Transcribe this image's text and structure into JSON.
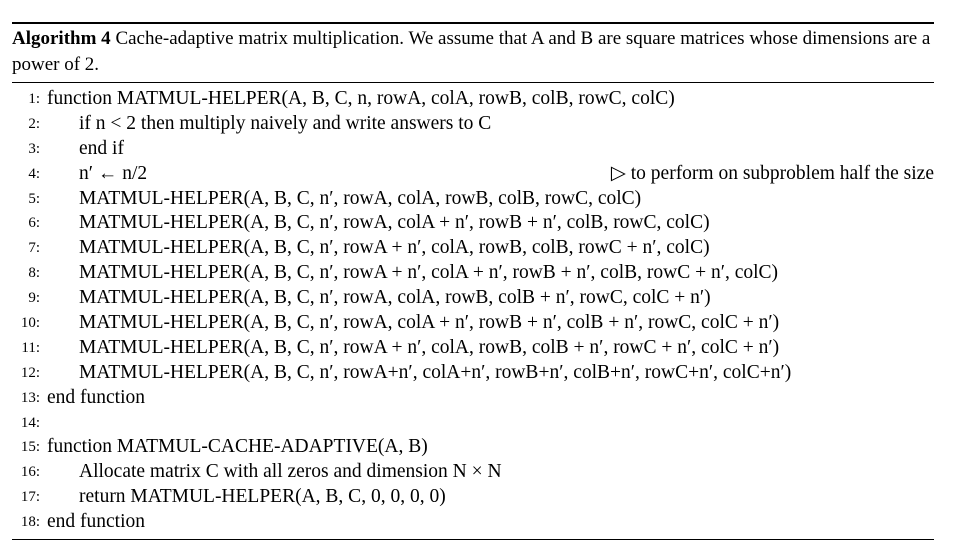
{
  "caption": {
    "label": "Algorithm 4",
    "text": "Cache-adaptive matrix multiplication. We assume that A and B are square matrices whose dimensions are a power of 2."
  },
  "lines": [
    {
      "num": "1:",
      "indent": 0,
      "text": "function MATMUL-HELPER(A, B, C, n, rowA, colA, rowB, colB, rowC, colC)"
    },
    {
      "num": "2:",
      "indent": 1,
      "text": "if n < 2 then multiply naively and write answers to C"
    },
    {
      "num": "3:",
      "indent": 1,
      "text": "end if"
    },
    {
      "num": "4:",
      "indent": 1,
      "text": "n′ ← n/2",
      "comment": "▷ to perform on subproblem half the size"
    },
    {
      "num": "5:",
      "indent": 1,
      "text": "MATMUL-HELPER(A, B, C, n′, rowA, colA, rowB, colB, rowC, colC)"
    },
    {
      "num": "6:",
      "indent": 1,
      "text": "MATMUL-HELPER(A, B, C, n′, rowA, colA + n′, rowB + n′, colB, rowC, colC)"
    },
    {
      "num": "7:",
      "indent": 1,
      "text": "MATMUL-HELPER(A, B, C, n′, rowA + n′, colA, rowB, colB, rowC + n′, colC)"
    },
    {
      "num": "8:",
      "indent": 1,
      "text": "MATMUL-HELPER(A, B, C, n′, rowA + n′, colA + n′, rowB + n′, colB, rowC + n′, colC)"
    },
    {
      "num": "9:",
      "indent": 1,
      "text": "MATMUL-HELPER(A, B, C, n′, rowA, colA, rowB, colB + n′, rowC, colC + n′)"
    },
    {
      "num": "10:",
      "indent": 1,
      "text": "MATMUL-HELPER(A, B, C, n′, rowA, colA + n′, rowB + n′, colB + n′, rowC, colC + n′)"
    },
    {
      "num": "11:",
      "indent": 1,
      "text": "MATMUL-HELPER(A, B, C, n′, rowA + n′, colA, rowB, colB + n′, rowC + n′, colC + n′)"
    },
    {
      "num": "12:",
      "indent": 1,
      "text": "MATMUL-HELPER(A, B, C, n′, rowA+n′, colA+n′, rowB+n′, colB+n′, rowC+n′, colC+n′)"
    },
    {
      "num": "13:",
      "indent": 0,
      "text": "end function"
    },
    {
      "num": "14:",
      "indent": 0,
      "text": ""
    },
    {
      "num": "15:",
      "indent": 0,
      "text": "function MATMUL-CACHE-ADAPTIVE(A, B)"
    },
    {
      "num": "16:",
      "indent": 1,
      "text": "Allocate matrix C with all zeros and dimension N × N"
    },
    {
      "num": "17:",
      "indent": 1,
      "text": "return MATMUL-HELPER(A, B, C, 0, 0, 0, 0)"
    },
    {
      "num": "18:",
      "indent": 0,
      "text": "end function"
    }
  ]
}
